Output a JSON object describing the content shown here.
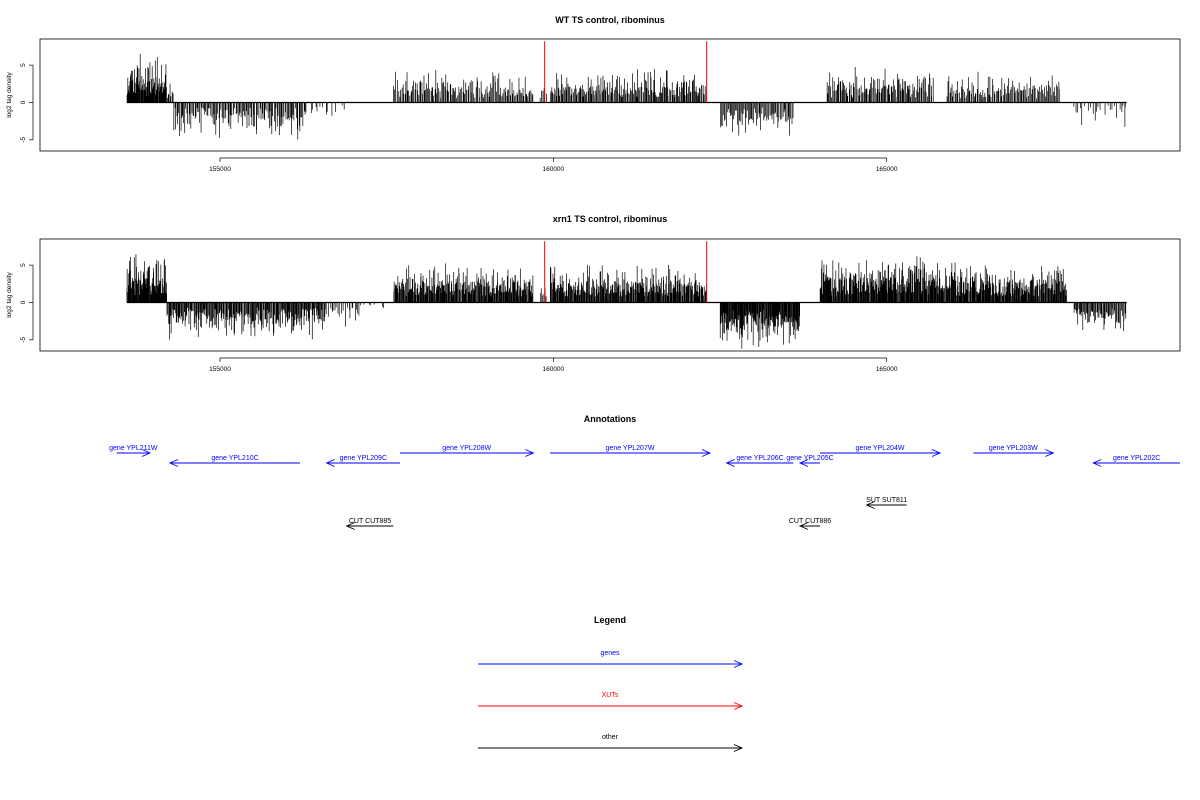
{
  "chart_data": [
    {
      "type": "bar",
      "title": "WT TS control, ribominus",
      "xlabel": "",
      "ylabel": "log2 tag density",
      "xlim": [
        152300,
        169400
      ],
      "ylim": [
        -6.5,
        8.5
      ],
      "xticks": [
        155000,
        160000,
        165000
      ],
      "yticks": [
        -5,
        0,
        5
      ],
      "markers": [
        {
          "x": 159870,
          "color": "#ff0000"
        },
        {
          "x": 162300,
          "color": "#ff0000"
        }
      ],
      "segments": [
        {
          "x": [
            153600,
            154200
          ],
          "base": 2.0,
          "amp": 4.6,
          "seed": 11,
          "density": 2
        },
        {
          "x": [
            154200,
            154300
          ],
          "base": 1.0,
          "amp": 1.5,
          "seed": 12,
          "density": 1
        },
        {
          "x": [
            154300,
            156300
          ],
          "base": -1.8,
          "amp": -3.2,
          "seed": 13,
          "density": 1
        },
        {
          "x": [
            156300,
            156900
          ],
          "base": -0.8,
          "amp": -1.0,
          "seed": 14,
          "density": 0.4
        },
        {
          "x": [
            157600,
            159700
          ],
          "base": 1.6,
          "amp": 2.6,
          "seed": 15,
          "density": 1
        },
        {
          "x": [
            159800,
            159900
          ],
          "base": 1.2,
          "amp": 0.8,
          "seed": 16,
          "density": 0.8
        },
        {
          "x": [
            159950,
            162300
          ],
          "base": 1.7,
          "amp": 2.8,
          "seed": 17,
          "density": 1.2
        },
        {
          "x": [
            162500,
            163600
          ],
          "base": -1.9,
          "amp": -2.5,
          "seed": 18,
          "density": 1
        },
        {
          "x": [
            164100,
            165700
          ],
          "base": 1.8,
          "amp": 2.7,
          "seed": 19,
          "density": 1.1
        },
        {
          "x": [
            165900,
            167600
          ],
          "base": 1.5,
          "amp": 2.5,
          "seed": 20,
          "density": 1
        },
        {
          "x": [
            167800,
            168500
          ],
          "base": -0.9,
          "amp": -2.2,
          "seed": 21,
          "density": 0.5
        },
        {
          "x": [
            168500,
            168600
          ],
          "base": -1.2,
          "amp": -2.0,
          "seed": 22,
          "density": 0.8
        }
      ]
    },
    {
      "type": "bar",
      "title": "xrn1 TS control, ribominus",
      "xlabel": "",
      "ylabel": "log2 tag density",
      "xlim": [
        152300,
        169400
      ],
      "ylim": [
        -6.5,
        8.5
      ],
      "xticks": [
        155000,
        160000,
        165000
      ],
      "yticks": [
        -5,
        0,
        5
      ],
      "markers": [
        {
          "x": 159870,
          "color": "#ff0000"
        },
        {
          "x": 162300,
          "color": "#ff0000"
        }
      ],
      "segments": [
        {
          "x": [
            153600,
            154200
          ],
          "base": 2.6,
          "amp": 4.8,
          "seed": 31,
          "density": 2.2
        },
        {
          "x": [
            154200,
            156600
          ],
          "base": -2.0,
          "amp": -2.8,
          "seed": 32,
          "density": 1.4
        },
        {
          "x": [
            156600,
            157100
          ],
          "base": -1.2,
          "amp": -2.0,
          "seed": 33,
          "density": 0.7
        },
        {
          "x": [
            157100,
            157500
          ],
          "base": -0.5,
          "amp": -0.8,
          "seed": 34,
          "density": 0.3
        },
        {
          "x": [
            157600,
            159700
          ],
          "base": 2.2,
          "amp": 2.8,
          "seed": 35,
          "density": 1.6
        },
        {
          "x": [
            159800,
            159900
          ],
          "base": 1.6,
          "amp": 1.0,
          "seed": 36,
          "density": 1
        },
        {
          "x": [
            159950,
            162300
          ],
          "base": 2.1,
          "amp": 2.9,
          "seed": 37,
          "density": 1.6
        },
        {
          "x": [
            162500,
            163700
          ],
          "base": -2.8,
          "amp": -3.2,
          "seed": 38,
          "density": 1.8
        },
        {
          "x": [
            164000,
            165800
          ],
          "base": 2.6,
          "amp": 3.4,
          "seed": 39,
          "density": 1.8
        },
        {
          "x": [
            165800,
            167700
          ],
          "base": 2.3,
          "amp": 2.8,
          "seed": 40,
          "density": 1.7
        },
        {
          "x": [
            167800,
            168500
          ],
          "base": -1.6,
          "amp": -2.2,
          "seed": 41,
          "density": 1.2
        },
        {
          "x": [
            168500,
            168600
          ],
          "base": -1.8,
          "amp": -1.8,
          "seed": 42,
          "density": 1
        }
      ]
    }
  ],
  "annotations": {
    "title": "Annotations",
    "items": [
      {
        "label": "gene YPL211W",
        "from": 153450,
        "to": 153950,
        "strand": "+",
        "track": 0,
        "color": "#0000ff"
      },
      {
        "label": "gene YPL210C",
        "from": 154250,
        "to": 156200,
        "strand": "-",
        "track": 1,
        "color": "#0000ff"
      },
      {
        "label": "gene YPL209C",
        "from": 156600,
        "to": 157700,
        "strand": "-",
        "track": 1,
        "color": "#0000ff"
      },
      {
        "label": "gene YPL208W",
        "from": 157700,
        "to": 159700,
        "strand": "+",
        "track": 0,
        "color": "#0000ff"
      },
      {
        "label": "gene YPL207W",
        "from": 159950,
        "to": 162350,
        "strand": "+",
        "track": 0,
        "color": "#0000ff"
      },
      {
        "label": "gene YPL206C",
        "from": 162600,
        "to": 163600,
        "strand": "-",
        "track": 1,
        "color": "#0000ff"
      },
      {
        "label": "gene YPL205C",
        "from": 163700,
        "to": 164000,
        "strand": "-",
        "track": 1,
        "color": "#0000ff"
      },
      {
        "label": "gene YPL204W",
        "from": 164000,
        "to": 165800,
        "strand": "+",
        "track": 0,
        "color": "#0000ff"
      },
      {
        "label": "gene YPL203W",
        "from": 166300,
        "to": 167500,
        "strand": "+",
        "track": 0,
        "color": "#0000ff"
      },
      {
        "label": "gene YPL202C",
        "from": 168100,
        "to": 169400,
        "strand": "-",
        "track": 1,
        "color": "#0000ff"
      },
      {
        "label": "SUT SUT811",
        "from": 164700,
        "to": 165300,
        "strand": "-",
        "track": 2,
        "color": "#000000"
      },
      {
        "label": "CUT CUT885",
        "from": 156900,
        "to": 157600,
        "strand": "-",
        "track": 3,
        "color": "#000000"
      },
      {
        "label": "CUT CUT886",
        "from": 163700,
        "to": 164000,
        "strand": "-",
        "track": 3,
        "color": "#000000"
      }
    ]
  },
  "legend": {
    "title": "Legend",
    "entries": [
      {
        "label": "genes",
        "color": "#0000ff"
      },
      {
        "label": "XUTs",
        "color": "#ff0000"
      },
      {
        "label": "other",
        "color": "#000000"
      }
    ]
  }
}
